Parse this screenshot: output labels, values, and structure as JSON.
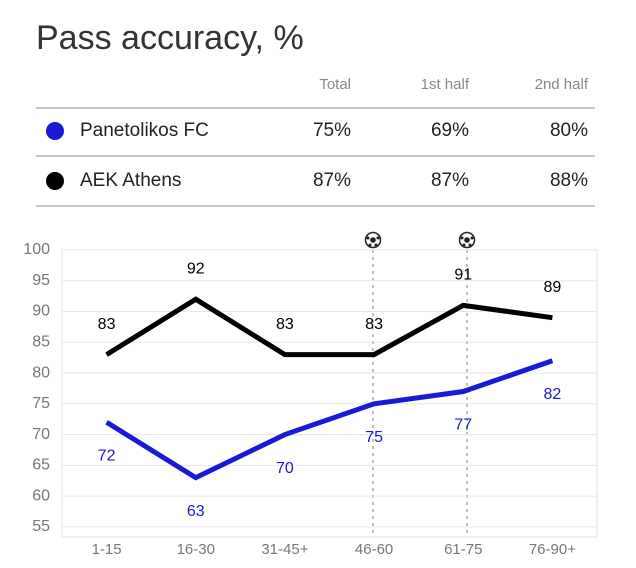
{
  "title": "Pass accuracy, %",
  "table": {
    "columns": [
      "Total",
      "1st half",
      "2nd half"
    ],
    "rows": [
      [
        "75%",
        "69%",
        "80%"
      ],
      [
        "87%",
        "87%",
        "88%"
      ]
    ]
  },
  "chart_data": {
    "type": "line",
    "categories": [
      "1-15",
      "16-30",
      "31-45+",
      "46-60",
      "61-75",
      "76-90+"
    ],
    "series": [
      {
        "name": "Panetolikos FC",
        "color": "#1a1ad6",
        "values": [
          72,
          63,
          70,
          75,
          77,
          82
        ],
        "labels": "below"
      },
      {
        "name": "AEK Athens",
        "color": "#000000",
        "values": [
          83,
          92,
          83,
          83,
          91,
          89
        ],
        "labels": "above"
      }
    ],
    "ylim": [
      54,
      100
    ],
    "yticks": [
      55,
      60,
      65,
      70,
      75,
      80,
      85,
      90,
      95,
      100
    ],
    "grid": true
  }
}
